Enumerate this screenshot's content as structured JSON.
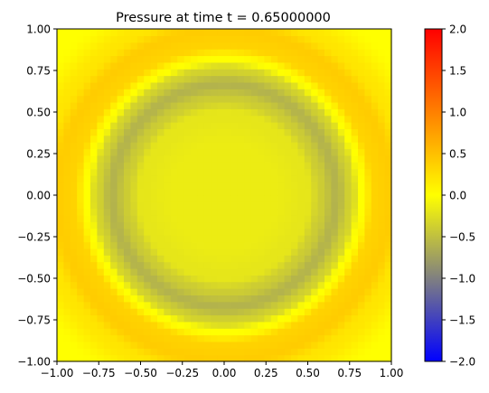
{
  "chart_data": {
    "type": "heatmap",
    "title": "Pressure at time t =     0.65000000",
    "xlabel": "",
    "ylabel": "",
    "xlim": [
      -1.0,
      1.0
    ],
    "ylim": [
      -1.0,
      1.0
    ],
    "grid": false,
    "x_ticks": [
      "−1.00",
      "−0.75",
      "−0.50",
      "−0.25",
      "0.00",
      "0.25",
      "0.50",
      "0.75",
      "1.00"
    ],
    "x_tick_values": [
      -1.0,
      -0.75,
      -0.5,
      -0.25,
      0.0,
      0.25,
      0.5,
      0.75,
      1.0
    ],
    "y_ticks": [
      "−1.00",
      "−0.75",
      "−0.50",
      "−0.25",
      "0.00",
      "0.25",
      "0.50",
      "0.75",
      "1.00"
    ],
    "y_tick_values": [
      -1.0,
      -0.75,
      -0.5,
      -0.25,
      0.0,
      0.25,
      0.5,
      0.75,
      1.0
    ],
    "grid_cells": [
      50,
      50
    ],
    "field": {
      "description_of_values_read_from_image": "radially symmetric pressure wave centered at origin",
      "radial_profile": [
        {
          "r": 0.0,
          "value": -0.15
        },
        {
          "r": 0.3,
          "value": -0.15
        },
        {
          "r": 0.5,
          "value": -0.2
        },
        {
          "r": 0.58,
          "value": -0.4
        },
        {
          "r": 0.67,
          "value": -0.6
        },
        {
          "r": 0.76,
          "value": -0.35
        },
        {
          "r": 0.82,
          "value": 0.0
        },
        {
          "r": 0.9,
          "value": 0.35
        },
        {
          "r": 1.0,
          "value": 0.4
        },
        {
          "r": 1.1,
          "value": 0.2
        },
        {
          "r": 1.3,
          "value": 0.0
        }
      ]
    },
    "colorbar": {
      "vmin": -2.0,
      "vmax": 2.0,
      "ticks": [
        "−2.0",
        "−1.5",
        "−1.0",
        "−0.5",
        "0.0",
        "0.5",
        "1.0",
        "1.5",
        "2.0"
      ],
      "tick_values": [
        -2.0,
        -1.5,
        -1.0,
        -0.5,
        0.0,
        0.5,
        1.0,
        1.5,
        2.0
      ],
      "colors": [
        {
          "value": -2.0,
          "color": "#0000ff"
        },
        {
          "value": -1.0,
          "color": "#808080"
        },
        {
          "value": 0.0,
          "color": "#ffff00"
        },
        {
          "value": 1.0,
          "color": "#ff8000"
        },
        {
          "value": 2.0,
          "color": "#ff0000"
        }
      ]
    }
  }
}
